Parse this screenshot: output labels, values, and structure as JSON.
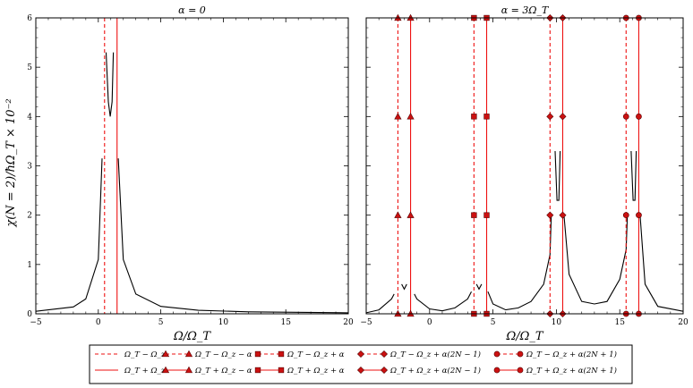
{
  "chart_data": [
    {
      "type": "line",
      "title": "α = 0",
      "xlabel": "Ω/Ω_T",
      "ylabel": "χ(N = 2)/ħΩ_T × 10⁻²",
      "xlim": [
        -5,
        20
      ],
      "ylim": [
        0,
        6
      ],
      "xticks": [
        "−5",
        "0",
        "5",
        "10",
        "15",
        "20"
      ],
      "yticks": [
        "0",
        "1",
        "2",
        "3",
        "4",
        "5",
        "6"
      ],
      "grid": false,
      "response_curves": [
        {
          "x": [
            -5,
            -2,
            -1,
            0,
            0.3
          ],
          "y": [
            0.05,
            0.14,
            0.3,
            1.1,
            3.15
          ]
        },
        {
          "x": [
            0.62,
            0.8,
            0.95,
            1.1,
            1.2
          ],
          "y": [
            5.3,
            4.3,
            4.0,
            4.3,
            5.3
          ]
        },
        {
          "x": [
            1.6,
            2,
            3,
            5,
            8,
            12,
            20
          ],
          "y": [
            3.15,
            1.1,
            0.4,
            0.15,
            0.07,
            0.04,
            0.02
          ]
        }
      ],
      "vertical_lines": [
        {
          "series": "Ω_T − Ω_z",
          "x": 0.5,
          "style": "dashed"
        },
        {
          "series": "Ω_T + Ω_z",
          "x": 1.5,
          "style": "solid"
        }
      ]
    },
    {
      "type": "line",
      "title": "α = 3Ω_T",
      "xlabel": "Ω/Ω_T",
      "xlim": [
        -5,
        20
      ],
      "ylim": [
        0,
        6
      ],
      "xticks": [
        "−5",
        "0",
        "5",
        "10",
        "15",
        "20"
      ],
      "grid": false,
      "response_curves": [
        {
          "x": [
            -5,
            -4,
            -3,
            -2.8
          ],
          "y": [
            0.02,
            0.08,
            0.3,
            0.4
          ]
        },
        {
          "x": [
            -2.2,
            -2,
            -1.8
          ],
          "y": [
            0.6,
            0.5,
            0.6
          ]
        },
        {
          "x": [
            -1.2,
            -1,
            0,
            1,
            2,
            3,
            3.3
          ],
          "y": [
            0.4,
            0.3,
            0.1,
            0.06,
            0.12,
            0.3,
            0.45
          ]
        },
        {
          "x": [
            3.7,
            3.9,
            4.1
          ],
          "y": [
            0.6,
            0.5,
            0.6
          ]
        },
        {
          "x": [
            4.6,
            5,
            6,
            7,
            8,
            9,
            9.5,
            9.6
          ],
          "y": [
            0.45,
            0.2,
            0.08,
            0.12,
            0.25,
            0.6,
            1.2,
            2.0
          ]
        },
        {
          "x": [
            9.9,
            10.05,
            10.2,
            10.3
          ],
          "y": [
            3.3,
            2.3,
            2.3,
            3.3
          ]
        },
        {
          "x": [
            10.6,
            11,
            12,
            13,
            14,
            15,
            15.5,
            15.6
          ],
          "y": [
            2.0,
            0.8,
            0.25,
            0.2,
            0.25,
            0.7,
            1.3,
            2.0
          ]
        },
        {
          "x": [
            15.9,
            16.05,
            16.2,
            16.3
          ],
          "y": [
            3.3,
            2.3,
            2.3,
            3.3
          ]
        },
        {
          "x": [
            16.6,
            17,
            18,
            20
          ],
          "y": [
            2.0,
            0.6,
            0.15,
            0.05
          ]
        }
      ],
      "vertical_lines": [
        {
          "series": "Ω_T − Ω_z − α",
          "x": -2.5,
          "style": "dashed",
          "marker": "triangle"
        },
        {
          "series": "Ω_T + Ω_z − α",
          "x": -1.5,
          "style": "solid",
          "marker": "triangle"
        },
        {
          "series": "Ω_T − Ω_z + α",
          "x": 3.5,
          "style": "dashed",
          "marker": "square"
        },
        {
          "series": "Ω_T + Ω_z + α",
          "x": 4.5,
          "style": "solid",
          "marker": "square"
        },
        {
          "series": "Ω_T − Ω_z + α(2N − 1)",
          "x": 9.5,
          "style": "dashed",
          "marker": "diamond"
        },
        {
          "series": "Ω_T + Ω_z + α(2N − 1)",
          "x": 10.5,
          "style": "solid",
          "marker": "diamond"
        },
        {
          "series": "Ω_T − Ω_z + α(2N + 1)",
          "x": 15.5,
          "style": "dashed",
          "marker": "circle"
        },
        {
          "series": "Ω_T + Ω_z + α(2N + 1)",
          "x": 16.5,
          "style": "solid",
          "marker": "circle"
        }
      ],
      "marker_y_levels": [
        0,
        2,
        4,
        6
      ]
    }
  ],
  "colors": {
    "response": "#000000",
    "lines": "#ee1111",
    "marker_fill": "#cc1111",
    "marker_edge": "#550000"
  },
  "legend": {
    "placement": "bottom",
    "entries": [
      {
        "label": "Ω_T − Ω_z",
        "style": "dashed",
        "marker": "none"
      },
      {
        "label": "Ω_T + Ω_z",
        "style": "solid",
        "marker": "none"
      },
      {
        "label": "Ω_T − Ω_z − α",
        "style": "dashed",
        "marker": "triangle"
      },
      {
        "label": "Ω_T + Ω_z − α",
        "style": "solid",
        "marker": "triangle"
      },
      {
        "label": "Ω_T − Ω_z + α",
        "style": "dashed",
        "marker": "square"
      },
      {
        "label": "Ω_T + Ω_z + α",
        "style": "solid",
        "marker": "square"
      },
      {
        "label": "Ω_T − Ω_z + α(2N − 1)",
        "style": "dashed",
        "marker": "diamond"
      },
      {
        "label": "Ω_T + Ω_z + α(2N − 1)",
        "style": "solid",
        "marker": "diamond"
      },
      {
        "label": "Ω_T − Ω_z + α(2N + 1)",
        "style": "dashed",
        "marker": "circle"
      },
      {
        "label": "Ω_T + Ω_z + α(2N + 1)",
        "style": "solid",
        "marker": "circle"
      }
    ]
  }
}
